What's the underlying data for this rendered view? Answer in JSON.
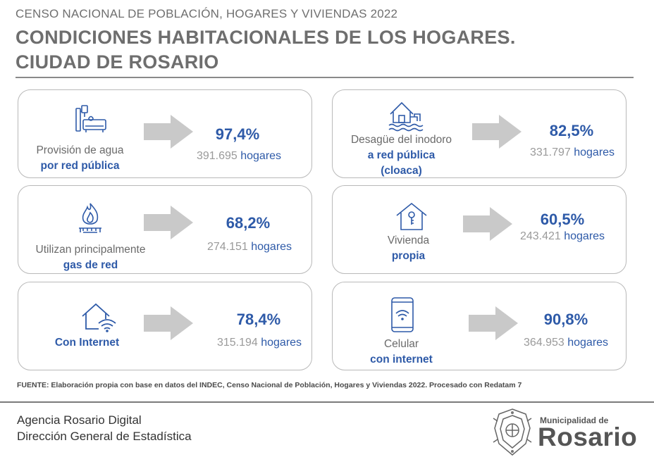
{
  "header": {
    "supertitle": "CENSO NACIONAL DE POBLACIÓN, HOGARES Y VIVIENDAS 2022",
    "title_line1": "CONDICIONES HABITACIONALES DE LOS HOGARES.",
    "title_line2": "CIUDAD DE ROSARIO"
  },
  "cards": [
    {
      "line1": "Provisión de agua",
      "line2": "por red pública",
      "line3": "",
      "percent": "97,4%",
      "count": "391.695",
      "unit": "hogares",
      "icon": "water-tank-icon"
    },
    {
      "line1": "Desagüe del inodoro",
      "line2": "a red pública",
      "line3": "(cloaca)",
      "percent": "82,5%",
      "count": "331.797",
      "unit": "hogares",
      "icon": "house-sewer-icon"
    },
    {
      "line1": "Utilizan principalmente",
      "line2": "gas de red",
      "line3": "",
      "percent": "68,2%",
      "count": "274.151",
      "unit": "hogares",
      "icon": "gas-flame-icon"
    },
    {
      "line1": "Vivienda",
      "line2": "propia",
      "line3": "",
      "percent": "60,5%",
      "count": "243.421",
      "unit": "hogares",
      "icon": "house-key-icon"
    },
    {
      "line1": "",
      "line2": "Con Internet",
      "line3": "",
      "percent": "78,4%",
      "count": "315.194",
      "unit": "hogares",
      "icon": "house-wifi-icon"
    },
    {
      "line1": "Celular",
      "line2": "con internet",
      "line3": "",
      "percent": "90,8%",
      "count": "364.953",
      "unit": "hogares",
      "icon": "smartphone-wifi-icon"
    }
  ],
  "source": "FUENTE: Elaboración propia con base en datos del INDEC, Censo Nacional de Población, Hogares y Viviendas 2022. Procesado con Redatam 7",
  "footer": {
    "agency_line1": "Agencia Rosario Digital",
    "agency_line2": "Dirección General de Estadística",
    "municipality_small": "Municipalidad de",
    "municipality_big": "Rosario"
  },
  "colors": {
    "accent_blue": "#2e5aa8",
    "arrow_gray": "#c9c9c9",
    "title_gray": "#6e6e6e"
  }
}
